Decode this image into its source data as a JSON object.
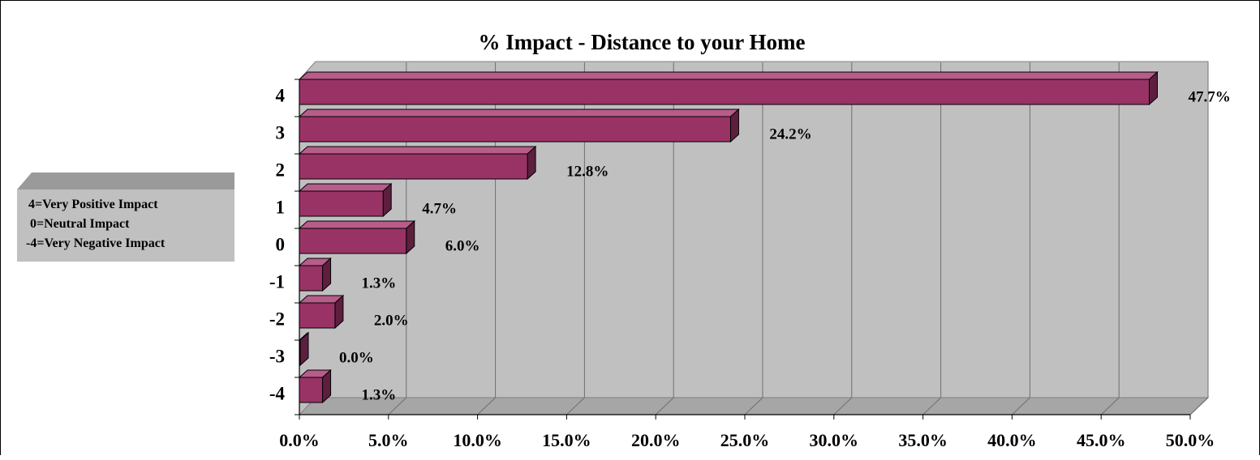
{
  "chart_data": {
    "type": "bar",
    "orientation": "horizontal",
    "title": "% Impact - Distance to your Home",
    "categories": [
      "4",
      "3",
      "2",
      "1",
      "0",
      "-1",
      "-2",
      "-3",
      "-4"
    ],
    "values": [
      47.7,
      24.2,
      12.8,
      4.7,
      6.0,
      1.3,
      2.0,
      0.0,
      1.3
    ],
    "data_labels": [
      "47.7%",
      "24.2%",
      "12.8%",
      "4.7%",
      "6.0%",
      "1.3%",
      "2.0%",
      "0.0%",
      "1.3%"
    ],
    "x_ticks": [
      "0.0%",
      "5.0%",
      "10.0%",
      "15.0%",
      "20.0%",
      "25.0%",
      "30.0%",
      "35.0%",
      "40.0%",
      "45.0%",
      "50.0%"
    ],
    "xlim": [
      0,
      50
    ],
    "xlabel": "",
    "ylabel": "",
    "grid": true,
    "three_d": true,
    "legend": {
      "placement": "left",
      "lines": [
        "4=Very Positive Impact",
        "0=Neutral Impact",
        "-4=Very Negative Impact"
      ]
    },
    "colors": {
      "bar_front": "#993366",
      "bar_top": "#B85C8A",
      "bar_side": "#5E1F3F",
      "plot_wall": "#C0C0C0",
      "floor": "#A6A6A6",
      "legend_box": "#C0C0C0",
      "legend_top": "#9A9A9A"
    }
  }
}
